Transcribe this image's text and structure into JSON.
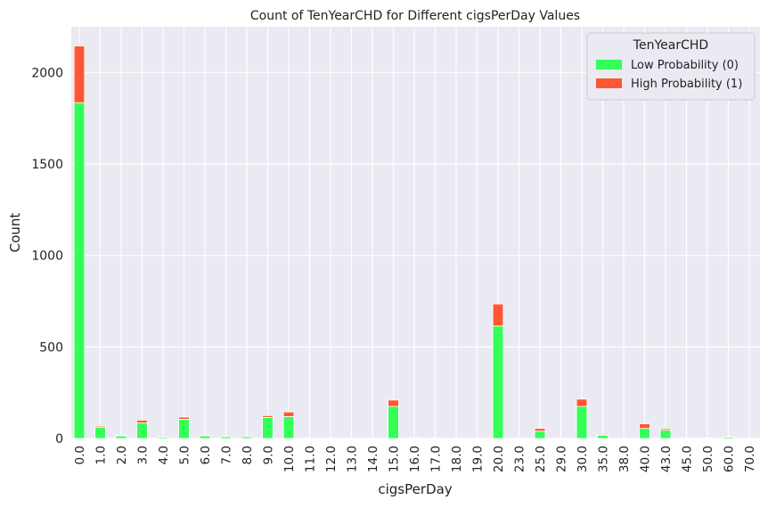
{
  "chart_data": {
    "type": "bar",
    "stacked": true,
    "title": "Count of TenYearCHD for Different cigsPerDay Values",
    "xlabel": "cigsPerDay",
    "ylabel": "Count",
    "ylim": [
      0,
      2250
    ],
    "yticks": [
      0,
      500,
      1000,
      1500,
      2000
    ],
    "grid": true,
    "legend_title": "TenYearCHD",
    "legend_position": "top-right",
    "categories": [
      "0.0",
      "1.0",
      "2.0",
      "3.0",
      "4.0",
      "5.0",
      "6.0",
      "7.0",
      "8.0",
      "9.0",
      "10.0",
      "11.0",
      "12.0",
      "13.0",
      "14.0",
      "15.0",
      "16.0",
      "17.0",
      "18.0",
      "19.0",
      "20.0",
      "23.0",
      "25.0",
      "29.0",
      "30.0",
      "35.0",
      "38.0",
      "40.0",
      "43.0",
      "45.0",
      "50.0",
      "60.0",
      "70.0"
    ],
    "series": [
      {
        "name": "Low Probability (0)",
        "color": "#33ff57",
        "values": [
          1835,
          60,
          14,
          85,
          7,
          105,
          15,
          10,
          10,
          115,
          120,
          3,
          3,
          2,
          1,
          175,
          4,
          3,
          3,
          2,
          615,
          2,
          40,
          2,
          175,
          17,
          1,
          55,
          45,
          2,
          4,
          8,
          1
        ]
      },
      {
        "name": "High Probability (1)",
        "color": "#ff5733",
        "values": [
          310,
          7,
          4,
          15,
          2,
          12,
          3,
          1,
          1,
          10,
          25,
          0,
          0,
          0,
          0,
          35,
          1,
          0,
          0,
          0,
          120,
          0,
          15,
          0,
          40,
          5,
          0,
          25,
          8,
          1,
          1,
          2,
          0
        ]
      }
    ]
  }
}
